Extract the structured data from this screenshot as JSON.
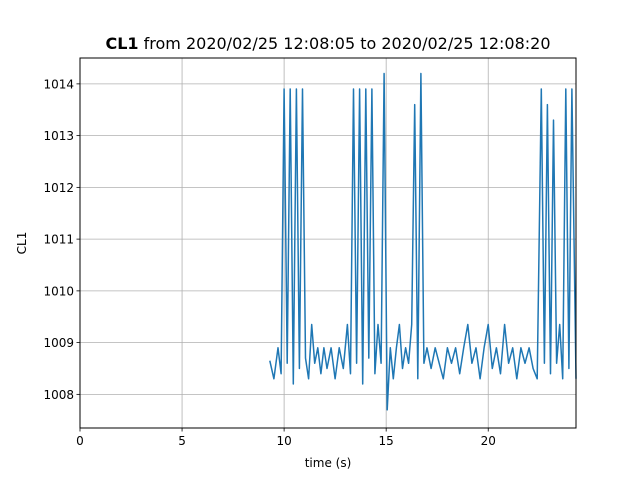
{
  "chart_data": {
    "type": "line",
    "title_bold": "CL1",
    "title_rest": " from 2020/02/25 12:08:05 to 2020/02/25 12:08:20",
    "xlabel": "time (s)",
    "ylabel": "CL1",
    "xlim": [
      0,
      24.3
    ],
    "ylim": [
      1007.35,
      1014.5
    ],
    "xticks": [
      0,
      5,
      10,
      15,
      20
    ],
    "yticks": [
      1008,
      1009,
      1010,
      1011,
      1012,
      1013,
      1014
    ],
    "grid": true,
    "series": [
      {
        "color": "#1f77b4",
        "x": [
          9.3,
          9.5,
          9.7,
          9.85,
          10.0,
          10.15,
          10.3,
          10.45,
          10.6,
          10.75,
          10.9,
          11.05,
          11.2,
          11.35,
          11.5,
          11.65,
          11.8,
          11.95,
          12.1,
          12.3,
          12.5,
          12.7,
          12.9,
          13.1,
          13.25,
          13.4,
          13.55,
          13.7,
          13.85,
          14.0,
          14.15,
          14.3,
          14.45,
          14.6,
          14.75,
          14.9,
          15.05,
          15.2,
          15.35,
          15.5,
          15.65,
          15.8,
          15.95,
          16.1,
          16.25,
          16.4,
          16.55,
          16.7,
          16.85,
          17.0,
          17.2,
          17.4,
          17.6,
          17.8,
          18.0,
          18.2,
          18.4,
          18.6,
          18.8,
          19.0,
          19.2,
          19.4,
          19.6,
          19.8,
          20.0,
          20.2,
          20.4,
          20.6,
          20.8,
          21.0,
          21.2,
          21.4,
          21.6,
          21.8,
          22.0,
          22.2,
          22.4,
          22.6,
          22.75,
          22.9,
          23.05,
          23.2,
          23.35,
          23.5,
          23.65,
          23.8,
          23.95,
          24.1,
          24.3
        ],
        "y": [
          1008.65,
          1008.3,
          1008.9,
          1008.4,
          1013.9,
          1008.6,
          1013.9,
          1008.2,
          1013.9,
          1008.5,
          1013.9,
          1008.7,
          1008.3,
          1009.35,
          1008.6,
          1008.9,
          1008.4,
          1008.9,
          1008.5,
          1008.9,
          1008.3,
          1008.9,
          1008.5,
          1009.35,
          1008.4,
          1013.9,
          1008.6,
          1013.9,
          1008.2,
          1013.9,
          1008.7,
          1013.9,
          1008.4,
          1009.35,
          1008.6,
          1014.2,
          1007.7,
          1008.9,
          1008.3,
          1008.9,
          1009.35,
          1008.5,
          1008.9,
          1008.6,
          1009.35,
          1013.6,
          1008.3,
          1014.2,
          1008.6,
          1008.9,
          1008.5,
          1008.9,
          1008.6,
          1008.3,
          1008.9,
          1008.6,
          1008.9,
          1008.4,
          1008.9,
          1009.35,
          1008.6,
          1008.9,
          1008.3,
          1008.9,
          1009.35,
          1008.5,
          1008.9,
          1008.4,
          1009.35,
          1008.6,
          1008.9,
          1008.3,
          1008.9,
          1008.6,
          1008.9,
          1008.5,
          1008.3,
          1013.9,
          1008.6,
          1013.6,
          1008.4,
          1013.3,
          1008.6,
          1009.35,
          1008.3,
          1013.9,
          1008.5,
          1013.9,
          1008.3
        ]
      }
    ]
  }
}
